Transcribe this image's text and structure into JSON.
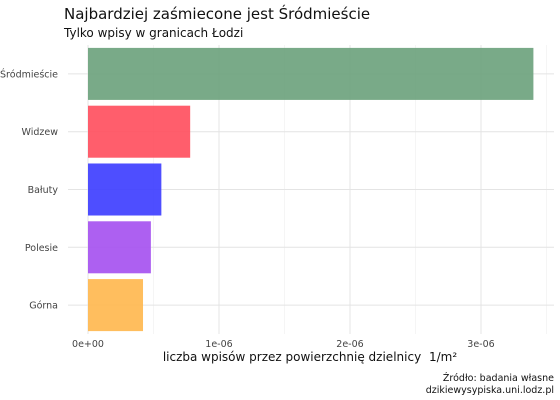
{
  "chart_data": {
    "type": "bar",
    "orientation": "horizontal",
    "title": "Najbardziej zaśmiecone jest Śródmieście",
    "subtitle": "Tylko wpisy w granicach Łodzi",
    "xlabel": "liczba wpisów przez powierzchnię dzielnicy",
    "xlabel_unit": "1/m²",
    "categories": [
      "Śródmieście",
      "Widzew",
      "Bałuty",
      "Polesie",
      "Górna"
    ],
    "values": [
      3.4e-06,
      7.8e-07,
      5.6e-07,
      4.8e-07,
      4.2e-07
    ],
    "colors": [
      "#6aa17b",
      "#ff4d5c",
      "#3b3bff",
      "#a44ff0",
      "#ffb74d"
    ],
    "xlim": [
      0,
      3.5e-06
    ],
    "xticks": [
      0,
      1e-06,
      2e-06,
      3e-06
    ],
    "xtick_labels": [
      "0e+00",
      "1e-06",
      "2e-06",
      "3e-06"
    ],
    "grid": true,
    "caption_lines": [
      "Źródło: badania własne",
      "dzikiewysypiska.uni.lodz.pl"
    ]
  }
}
